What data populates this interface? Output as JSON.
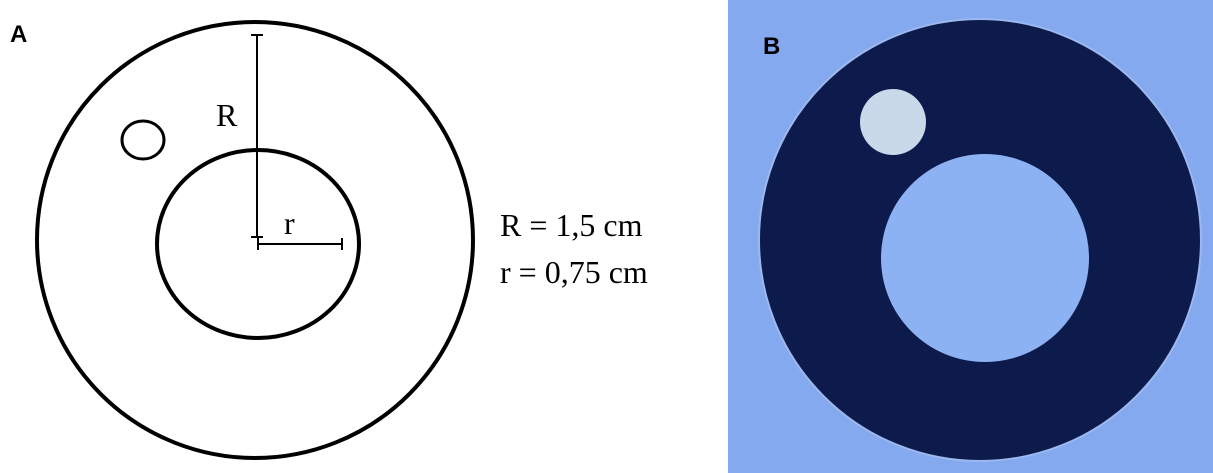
{
  "panel_a": {
    "label": "A",
    "outer_radius_label": "R",
    "inner_radius_label": "r",
    "legend": [
      "R = 1,5 cm",
      "r = 0,75 cm"
    ]
  },
  "panel_b": {
    "label": "B"
  }
}
